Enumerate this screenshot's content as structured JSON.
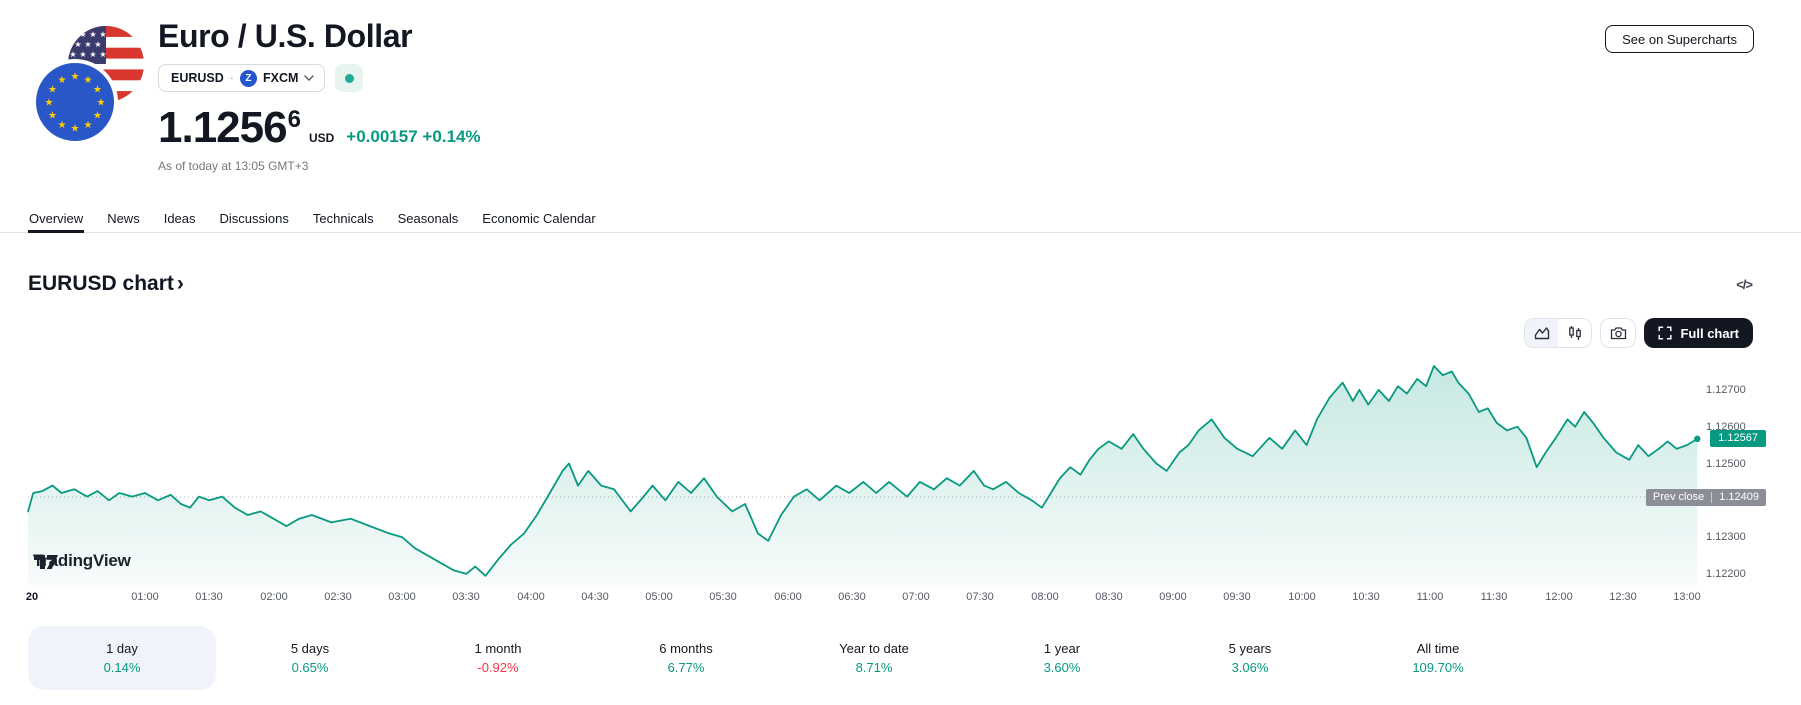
{
  "header": {
    "title": "Euro / U.S. Dollar",
    "symbol": "EURUSD",
    "separator": "·",
    "exchange": "FXCM",
    "exchange_logo_letter": "Z",
    "market_status": "open",
    "price_main": "1.1256",
    "price_sup": "6",
    "currency": "USD",
    "change_abs": "+0.00157",
    "change_pct": "+0.14%",
    "as_of": "As of today at 13:05 GMT+3",
    "supercharts_label": "See on Supercharts"
  },
  "tabs": {
    "active_index": 0,
    "items": [
      "Overview",
      "News",
      "Ideas",
      "Discussions",
      "Technicals",
      "Seasonals",
      "Economic Calendar"
    ]
  },
  "section": {
    "title": "EURUSD chart",
    "chevron": "›",
    "embed_icon": "</>"
  },
  "toolbar": {
    "full_chart_label": "Full chart"
  },
  "watermark": {
    "text": "TradingView"
  },
  "performance": {
    "items": [
      {
        "label": "1 day",
        "value": "0.14%",
        "direction": "up",
        "selected": true
      },
      {
        "label": "5 days",
        "value": "0.65%",
        "direction": "up",
        "selected": false
      },
      {
        "label": "1 month",
        "value": "-0.92%",
        "direction": "down",
        "selected": false
      },
      {
        "label": "6 months",
        "value": "6.77%",
        "direction": "up",
        "selected": false
      },
      {
        "label": "Year to date",
        "value": "8.71%",
        "direction": "up",
        "selected": false
      },
      {
        "label": "1 year",
        "value": "3.60%",
        "direction": "up",
        "selected": false
      },
      {
        "label": "5 years",
        "value": "3.06%",
        "direction": "up",
        "selected": false
      },
      {
        "label": "All time",
        "value": "109.70%",
        "direction": "up",
        "selected": false
      }
    ]
  },
  "colors": {
    "up": "#089981",
    "down": "#f23645",
    "text": "#131722",
    "border": "#e0e3eb",
    "pill": "#f0f3fa",
    "prev_badge": "#8b8e96",
    "status_dot": "#22ab94",
    "line": "#089981"
  },
  "chart_data": {
    "type": "area",
    "symbol": "EURUSD",
    "line_color": "#089981",
    "grid": "off",
    "last_price": {
      "display": "1.12567",
      "price": 1.12567
    },
    "prev_close": {
      "label": "Prev close",
      "display": "1.12409",
      "price": 1.12409
    },
    "y_axis": {
      "range": [
        1.122,
        1.1277
      ],
      "ticks": [
        {
          "label": "1.12700",
          "price": 1.127
        },
        {
          "label": "1.12600",
          "price": 1.126
        },
        {
          "label": "1.12500",
          "price": 1.125
        },
        {
          "label": "1.12300",
          "price": 1.123
        },
        {
          "label": "1.12200",
          "price": 1.122
        }
      ]
    },
    "x_axis": {
      "ticks": [
        {
          "label": "20",
          "t": 0.12,
          "bold": true
        },
        {
          "label": "01:00",
          "t": 1
        },
        {
          "label": "01:30",
          "t": 1.5
        },
        {
          "label": "02:00",
          "t": 2
        },
        {
          "label": "02:30",
          "t": 2.5
        },
        {
          "label": "03:00",
          "t": 3
        },
        {
          "label": "03:30",
          "t": 3.5
        },
        {
          "label": "04:00",
          "t": 4
        },
        {
          "label": "04:30",
          "t": 4.5
        },
        {
          "label": "05:00",
          "t": 5
        },
        {
          "label": "05:30",
          "t": 5.5
        },
        {
          "label": "06:00",
          "t": 6
        },
        {
          "label": "06:30",
          "t": 6.5
        },
        {
          "label": "07:00",
          "t": 7
        },
        {
          "label": "07:30",
          "t": 7.5
        },
        {
          "label": "08:00",
          "t": 8
        },
        {
          "label": "08:30",
          "t": 8.5
        },
        {
          "label": "09:00",
          "t": 9
        },
        {
          "label": "09:30",
          "t": 9.5
        },
        {
          "label": "10:00",
          "t": 10
        },
        {
          "label": "10:30",
          "t": 10.5
        },
        {
          "label": "11:00",
          "t": 11
        },
        {
          "label": "11:30",
          "t": 11.5
        },
        {
          "label": "12:00",
          "t": 12
        },
        {
          "label": "12:30",
          "t": 12.5
        },
        {
          "label": "13:00",
          "t": 13
        }
      ]
    },
    "points": [
      [
        0.09,
        1.1237
      ],
      [
        0.13,
        1.1242
      ],
      [
        0.2,
        1.12425
      ],
      [
        0.28,
        1.1244
      ],
      [
        0.35,
        1.1242
      ],
      [
        0.45,
        1.1243
      ],
      [
        0.55,
        1.1241
      ],
      [
        0.63,
        1.12425
      ],
      [
        0.72,
        1.124
      ],
      [
        0.8,
        1.1242
      ],
      [
        0.9,
        1.1241
      ],
      [
        1.0,
        1.1242
      ],
      [
        1.1,
        1.124
      ],
      [
        1.2,
        1.12415
      ],
      [
        1.28,
        1.1239
      ],
      [
        1.35,
        1.1238
      ],
      [
        1.42,
        1.1241
      ],
      [
        1.5,
        1.124
      ],
      [
        1.6,
        1.1241
      ],
      [
        1.7,
        1.1238
      ],
      [
        1.8,
        1.1236
      ],
      [
        1.9,
        1.1237
      ],
      [
        2.0,
        1.1235
      ],
      [
        2.1,
        1.1233
      ],
      [
        2.2,
        1.1235
      ],
      [
        2.3,
        1.1236
      ],
      [
        2.45,
        1.1234
      ],
      [
        2.6,
        1.1235
      ],
      [
        2.75,
        1.1233
      ],
      [
        2.9,
        1.1231
      ],
      [
        3.0,
        1.123
      ],
      [
        3.1,
        1.1227
      ],
      [
        3.25,
        1.1224
      ],
      [
        3.4,
        1.1221
      ],
      [
        3.5,
        1.122
      ],
      [
        3.57,
        1.1222
      ],
      [
        3.65,
        1.12195
      ],
      [
        3.75,
        1.1224
      ],
      [
        3.85,
        1.1228
      ],
      [
        3.95,
        1.1231
      ],
      [
        4.05,
        1.1236
      ],
      [
        4.15,
        1.1242
      ],
      [
        4.25,
        1.1248
      ],
      [
        4.3,
        1.125
      ],
      [
        4.37,
        1.1244
      ],
      [
        4.45,
        1.1248
      ],
      [
        4.55,
        1.1244
      ],
      [
        4.65,
        1.1243
      ],
      [
        4.78,
        1.1237
      ],
      [
        4.88,
        1.1241
      ],
      [
        4.95,
        1.1244
      ],
      [
        5.05,
        1.124
      ],
      [
        5.15,
        1.1245
      ],
      [
        5.25,
        1.1242
      ],
      [
        5.35,
        1.1246
      ],
      [
        5.45,
        1.1241
      ],
      [
        5.57,
        1.1237
      ],
      [
        5.67,
        1.1239
      ],
      [
        5.77,
        1.1231
      ],
      [
        5.85,
        1.1229
      ],
      [
        5.95,
        1.1236
      ],
      [
        6.05,
        1.1241
      ],
      [
        6.15,
        1.1243
      ],
      [
        6.25,
        1.124
      ],
      [
        6.38,
        1.1244
      ],
      [
        6.48,
        1.1242
      ],
      [
        6.59,
        1.1245
      ],
      [
        6.69,
        1.1242
      ],
      [
        6.79,
        1.1245
      ],
      [
        6.93,
        1.1241
      ],
      [
        7.03,
        1.1245
      ],
      [
        7.14,
        1.1243
      ],
      [
        7.24,
        1.1246
      ],
      [
        7.34,
        1.1244
      ],
      [
        7.45,
        1.1248
      ],
      [
        7.53,
        1.1244
      ],
      [
        7.6,
        1.1243
      ],
      [
        7.7,
        1.1245
      ],
      [
        7.8,
        1.1242
      ],
      [
        7.9,
        1.124
      ],
      [
        7.98,
        1.1238
      ],
      [
        8.05,
        1.1242
      ],
      [
        8.12,
        1.1246
      ],
      [
        8.2,
        1.1249
      ],
      [
        8.28,
        1.1247
      ],
      [
        8.35,
        1.1251
      ],
      [
        8.42,
        1.1254
      ],
      [
        8.5,
        1.1256
      ],
      [
        8.6,
        1.1254
      ],
      [
        8.69,
        1.1258
      ],
      [
        8.77,
        1.1254
      ],
      [
        8.87,
        1.125
      ],
      [
        8.95,
        1.1248
      ],
      [
        9.05,
        1.1253
      ],
      [
        9.12,
        1.1255
      ],
      [
        9.2,
        1.1259
      ],
      [
        9.3,
        1.1262
      ],
      [
        9.4,
        1.1257
      ],
      [
        9.5,
        1.1254
      ],
      [
        9.62,
        1.1252
      ],
      [
        9.75,
        1.1257
      ],
      [
        9.85,
        1.1254
      ],
      [
        9.95,
        1.1259
      ],
      [
        10.04,
        1.1255
      ],
      [
        10.12,
        1.1262
      ],
      [
        10.22,
        1.1268
      ],
      [
        10.32,
        1.1272
      ],
      [
        10.4,
        1.1267
      ],
      [
        10.45,
        1.127
      ],
      [
        10.52,
        1.1266
      ],
      [
        10.6,
        1.127
      ],
      [
        10.68,
        1.1267
      ],
      [
        10.75,
        1.1271
      ],
      [
        10.82,
        1.1269
      ],
      [
        10.9,
        1.1273
      ],
      [
        10.97,
        1.1271
      ],
      [
        11.03,
        1.12765
      ],
      [
        11.1,
        1.1274
      ],
      [
        11.17,
        1.1275
      ],
      [
        11.22,
        1.1272
      ],
      [
        11.3,
        1.1269
      ],
      [
        11.38,
        1.1264
      ],
      [
        11.45,
        1.1265
      ],
      [
        11.52,
        1.1261
      ],
      [
        11.6,
        1.1259
      ],
      [
        11.68,
        1.126
      ],
      [
        11.75,
        1.1257
      ],
      [
        11.83,
        1.1249
      ],
      [
        11.9,
        1.1253
      ],
      [
        11.98,
        1.1257
      ],
      [
        12.07,
        1.1262
      ],
      [
        12.13,
        1.126
      ],
      [
        12.2,
        1.1264
      ],
      [
        12.27,
        1.1261
      ],
      [
        12.35,
        1.1257
      ],
      [
        12.45,
        1.1253
      ],
      [
        12.55,
        1.1251
      ],
      [
        12.62,
        1.1255
      ],
      [
        12.7,
        1.1252
      ],
      [
        12.78,
        1.1254
      ],
      [
        12.85,
        1.1256
      ],
      [
        12.92,
        1.1254
      ],
      [
        13.0,
        1.1255
      ],
      [
        13.08,
        1.12567
      ]
    ]
  }
}
